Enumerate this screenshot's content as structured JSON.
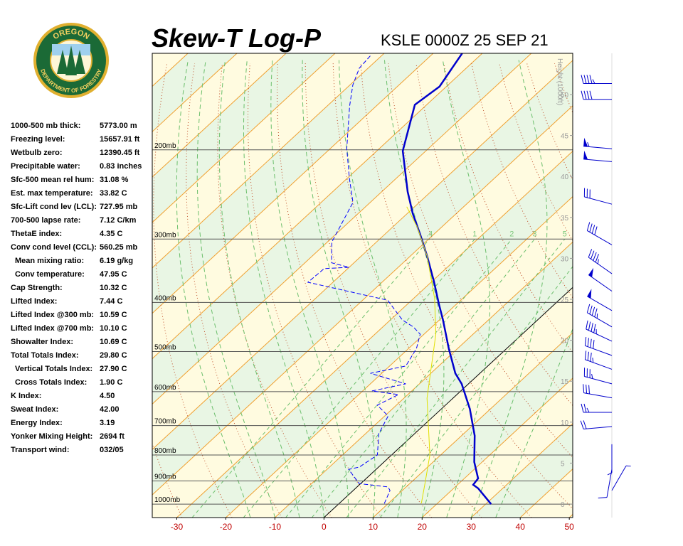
{
  "logo": {
    "top": "OREGON",
    "bottom": "DEPARTMENT OF FORESTRY"
  },
  "stats": [
    {
      "label": "1000-500 mb thick:",
      "value": "5773.00 m"
    },
    {
      "label": "Freezing level:",
      "value": "15657.91 ft"
    },
    {
      "label": "Wetbulb zero:",
      "value": "12390.45 ft"
    },
    {
      "label": "Precipitable water:",
      "value": "0.83 inches"
    },
    {
      "label": "Sfc-500 mean rel hum:",
      "value": "31.08 %"
    },
    {
      "label": "Est. max temperature:",
      "value": "33.82 C"
    },
    {
      "label": "Sfc-Lift cond lev (LCL):",
      "value": "727.95 mb"
    },
    {
      "label": "700-500 lapse rate:",
      "value": "7.12 C/km"
    },
    {
      "label": "ThetaE index:",
      "value": "4.35 C"
    },
    {
      "label": "Conv cond level (CCL):",
      "value": "560.25 mb"
    },
    {
      "label": "Mean mixing ratio:",
      "value": "6.19 g/kg",
      "indent": true
    },
    {
      "label": "Conv temperature:",
      "value": "47.95 C",
      "indent": true
    },
    {
      "label": "Cap Strength:",
      "value": "10.32 C"
    },
    {
      "label": "Lifted Index:",
      "value": "7.44 C"
    },
    {
      "label": "Lifted Index @300 mb:",
      "value": "10.59 C"
    },
    {
      "label": "Lifted Index @700 mb:",
      "value": "10.10 C"
    },
    {
      "label": "Showalter Index:",
      "value": "10.69 C"
    },
    {
      "label": "Total Totals Index:",
      "value": "29.80 C"
    },
    {
      "label": "Vertical Totals Index:",
      "value": "27.90 C",
      "indent": true
    },
    {
      "label": "Cross Totals Index:",
      "value": "1.90 C",
      "indent": true
    },
    {
      "label": "K Index:",
      "value": "4.50"
    },
    {
      "label": "Sweat Index:",
      "value": "42.00"
    },
    {
      "label": "Energy Index:",
      "value": "3.19"
    },
    {
      "label": "Yonker Mixing Height:",
      "value": "2694 ft"
    },
    {
      "label": "Transport wind:",
      "value": "032/05"
    }
  ],
  "chart_data": {
    "type": "skewt",
    "title": "Skew-T Log-P",
    "subtitle": "KSLE 0000Z 25 SEP 21",
    "xlim": [
      -35,
      50.7
    ],
    "xticks": [
      -30,
      -20,
      -10,
      0,
      10,
      20,
      30,
      40,
      50
    ],
    "ylim": [
      1063,
      129
    ],
    "log_y": true,
    "yticks": [
      {
        "value": 200,
        "label": "200mb"
      },
      {
        "value": 300,
        "label": "300mb"
      },
      {
        "value": 400,
        "label": "400mb"
      },
      {
        "value": 500,
        "label": "500mb"
      },
      {
        "value": 600,
        "label": "600mb"
      },
      {
        "value": 700,
        "label": "700mb"
      },
      {
        "value": 800,
        "label": "800mb"
      },
      {
        "value": 900,
        "label": "900mb"
      },
      {
        "value": 1000,
        "label": "1000mb"
      }
    ],
    "y2label": "Height (1000ft)",
    "y2lim": [
      0,
      50
    ],
    "y2ticks": [
      0,
      5,
      10,
      15,
      20,
      25,
      30,
      35,
      40,
      45,
      50
    ],
    "mixing_ratios": [
      {
        "value": 0.4,
        "label": ".4"
      },
      1,
      2,
      3,
      5,
      8
    ],
    "series": [
      {
        "color": "#0000cc",
        "pressure": [
          1000,
          931,
          916,
          890,
          826,
          733,
          649,
          579,
          552,
          494,
          433,
          403,
          363,
          324,
          294,
          267,
          242,
          201,
          163,
          150,
          129
        ],
        "values": [
          31.1,
          25.0,
          23.2,
          22.8,
          18.4,
          12.7,
          5.8,
          -1.4,
          -5.0,
          -11.7,
          -19.3,
          -23.6,
          -29.7,
          -36.6,
          -42.7,
          -48.9,
          -54.7,
          -64.7,
          -72.4,
          -71.4,
          -74.1
        ]
      },
      {
        "color": "#0000ff",
        "dashed": true,
        "pressure": [
          997,
          940,
          925,
          911,
          854,
          845,
          800,
          726,
          670,
          638,
          608,
          598,
          579,
          552,
          534,
          493,
          462,
          447,
          433,
          396,
          375,
          365,
          343,
          341,
          334,
          304,
          254,
          227,
          199,
          164,
          149,
          138,
          130
        ],
        "values": [
          9.2,
          7.5,
          6.3,
          -0.3,
          -5.6,
          -3.9,
          -2.9,
          -7.3,
          -9.3,
          -13.9,
          -11.9,
          -18.1,
          -12.8,
          -22.3,
          -16.7,
          -18.4,
          -20.8,
          -23.8,
          -27.6,
          -34.9,
          -48.4,
          -55.1,
          -54.8,
          -50.0,
          -54.6,
          -59.1,
          -63.5,
          -69.7,
          -76.6,
          -85.4,
          -89.4,
          -91.8,
          -92.3
        ]
      },
      {
        "color": "#e0e000",
        "pressure": [
          996,
          911,
          800,
          618,
          462,
          393,
          324,
          284,
          259
        ],
        "values": [
          16.7,
          13.1,
          7.8,
          -5.3,
          -17.6,
          -25.7,
          -36.6,
          -45.0,
          -51.6
        ]
      }
    ],
    "winds": [
      {
        "pressure": 148,
        "direction": 270,
        "speed": 45
      },
      {
        "pressure": 159,
        "direction": 270,
        "speed": 40
      },
      {
        "pressure": 199,
        "direction": 275,
        "speed": 55
      },
      {
        "pressure": 211,
        "direction": 275,
        "speed": 50
      },
      {
        "pressure": 256,
        "direction": 285,
        "speed": 30
      },
      {
        "pressure": 308,
        "direction": 300,
        "speed": 40
      },
      {
        "pressure": 351,
        "direction": 305,
        "speed": 45
      },
      {
        "pressure": 380,
        "direction": 305,
        "speed": 50
      },
      {
        "pressure": 415,
        "direction": 300,
        "speed": 50
      },
      {
        "pressure": 447,
        "direction": 300,
        "speed": 45
      },
      {
        "pressure": 477,
        "direction": 295,
        "speed": 45
      },
      {
        "pressure": 509,
        "direction": 290,
        "speed": 40
      },
      {
        "pressure": 542,
        "direction": 290,
        "speed": 35
      },
      {
        "pressure": 579,
        "direction": 285,
        "speed": 35
      },
      {
        "pressure": 617,
        "direction": 280,
        "speed": 30
      },
      {
        "pressure": 659,
        "direction": 270,
        "speed": 25
      },
      {
        "pressure": 703,
        "direction": 265,
        "speed": 20
      },
      {
        "pressure": 762,
        "direction": 180,
        "speed": 5
      },
      {
        "pressure": 854,
        "direction": 190,
        "speed": 10
      },
      {
        "pressure": 940,
        "direction": 30,
        "speed": 5
      }
    ]
  }
}
